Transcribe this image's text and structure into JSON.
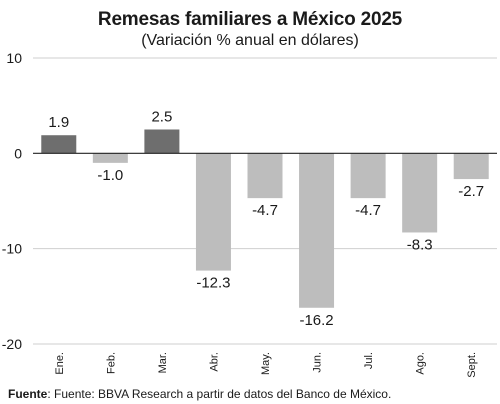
{
  "header": {
    "title": "Remesas familiares a México 2025",
    "subtitle": "(Variación % anual en dólares)"
  },
  "footer": {
    "source_label": "Fuente",
    "source_text": ": Fuente: BBVA Research a partir de datos del Banco de México."
  },
  "colors": {
    "positive": "#6e6e6e",
    "negative": "#bdbdbd",
    "axis": "#222222",
    "grid": "#cfcfcf",
    "text": "#1a1a1a"
  },
  "chart_data": {
    "type": "bar",
    "title": "Remesas familiares a México 2025",
    "subtitle": "(Variación % anual en dólares)",
    "categories": [
      "Ene.",
      "Feb.",
      "Mar.",
      "Abr.",
      "May.",
      "Jun.",
      "Jul.",
      "Ago.",
      "Sept."
    ],
    "values": [
      1.9,
      -1.0,
      2.5,
      -12.3,
      -4.7,
      -16.2,
      -4.7,
      -8.3,
      -2.7
    ],
    "labels": [
      "1.9",
      "-1.0",
      "2.5",
      "-12.3",
      "-4.7",
      "-16.2",
      "-4.7",
      "-8.3",
      "-2.7"
    ],
    "highlight": [
      true,
      false,
      true,
      false,
      false,
      false,
      false,
      false,
      false
    ],
    "ylim": [
      -20,
      10
    ],
    "yticks": [
      10,
      0,
      -10,
      -20
    ],
    "ytick_labels": [
      "10",
      "0",
      "-10",
      "-20"
    ],
    "xlabel": "",
    "ylabel": "",
    "grid": true
  }
}
